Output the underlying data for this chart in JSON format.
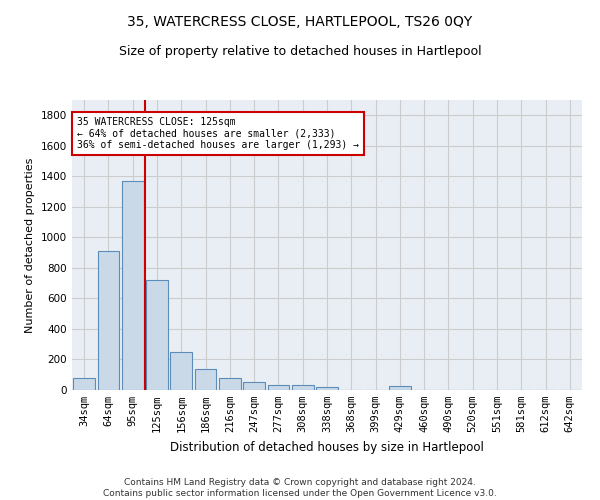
{
  "title": "35, WATERCRESS CLOSE, HARTLEPOOL, TS26 0QY",
  "subtitle": "Size of property relative to detached houses in Hartlepool",
  "xlabel": "Distribution of detached houses by size in Hartlepool",
  "ylabel": "Number of detached properties",
  "footer": "Contains HM Land Registry data © Crown copyright and database right 2024.\nContains public sector information licensed under the Open Government Licence v3.0.",
  "categories": [
    "34sqm",
    "64sqm",
    "95sqm",
    "125sqm",
    "156sqm",
    "186sqm",
    "216sqm",
    "247sqm",
    "277sqm",
    "308sqm",
    "338sqm",
    "368sqm",
    "399sqm",
    "429sqm",
    "460sqm",
    "490sqm",
    "520sqm",
    "551sqm",
    "581sqm",
    "612sqm",
    "642sqm"
  ],
  "values": [
    80,
    910,
    1370,
    720,
    250,
    135,
    80,
    55,
    30,
    30,
    20,
    0,
    0,
    25,
    0,
    0,
    0,
    0,
    0,
    0,
    0
  ],
  "bar_color": "#c9d9e8",
  "bar_edge_color": "#5b8db8",
  "vline_color": "#cc0000",
  "annotation_text": "35 WATERCRESS CLOSE: 125sqm\n← 64% of detached houses are smaller (2,333)\n36% of semi-detached houses are larger (1,293) →",
  "annotation_box_color": "#cc0000",
  "ylim": [
    0,
    1900
  ],
  "yticks": [
    0,
    200,
    400,
    600,
    800,
    1000,
    1200,
    1400,
    1600,
    1800
  ],
  "grid_color": "#cccccc",
  "bg_color": "#e8eef4",
  "title_fontsize": 10,
  "subtitle_fontsize": 9,
  "xlabel_fontsize": 8.5,
  "ylabel_fontsize": 8,
  "tick_fontsize": 7.5,
  "footer_fontsize": 6.5
}
